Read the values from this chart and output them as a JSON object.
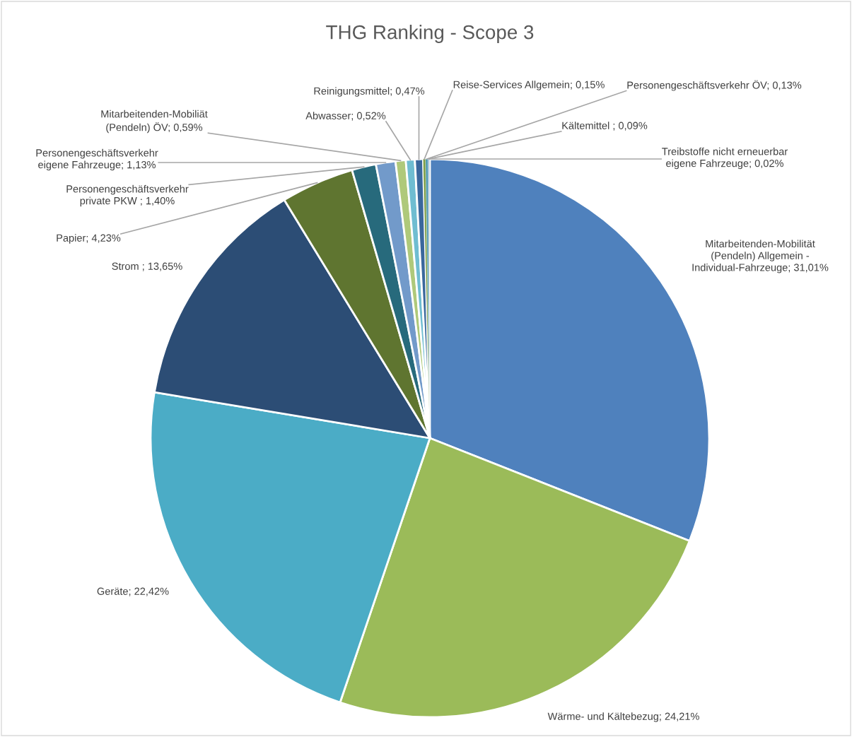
{
  "chart_data": {
    "type": "pie",
    "title": "THG Ranking - Scope 3",
    "categories": [
      "Mitarbeitenden-Mobilität\n(Pendeln) Allgemein -\nIndividual-Fahrzeuge",
      "Wärme- und Kältebezug",
      "Geräte",
      "Strom ",
      "Papier",
      "Personengeschäftsverkehr\nprivate PKW ",
      "Personengeschäftsverkehr\neigene Fahrzeuge",
      "Mitarbeitenden-Mobiliät\n(Pendeln) ÖV",
      "Abwasser",
      "Reinigungsmittel",
      "Reise-Services Allgemein",
      "Personengeschäftsverkehr ÖV",
      "Kältemittel ",
      "Treibstoffe nicht erneuerbar\neigene Fahrzeuge"
    ],
    "values": [
      31.01,
      24.21,
      22.42,
      13.65,
      4.23,
      1.4,
      1.13,
      0.59,
      0.52,
      0.47,
      0.15,
      0.13,
      0.09,
      0.02
    ],
    "value_labels": [
      "31,01%",
      "24,21%",
      "22,42%",
      "13,65%",
      "4,23%",
      "1,40%",
      "1,13%",
      "0,59%",
      "0,52%",
      "0,47%",
      "0,15%",
      "0,13%",
      "0,09%",
      "0,02%"
    ],
    "colors": [
      "#4f81bd",
      "#9bbb59",
      "#4bacc6",
      "#2c4d75",
      "#5f7530",
      "#276a7c",
      "#729aca",
      "#afc97a",
      "#6fbdd1",
      "#3a679c",
      "#7f9f4a",
      "#3b8fa5",
      "#94b3d9",
      "#c3d69b"
    ]
  }
}
